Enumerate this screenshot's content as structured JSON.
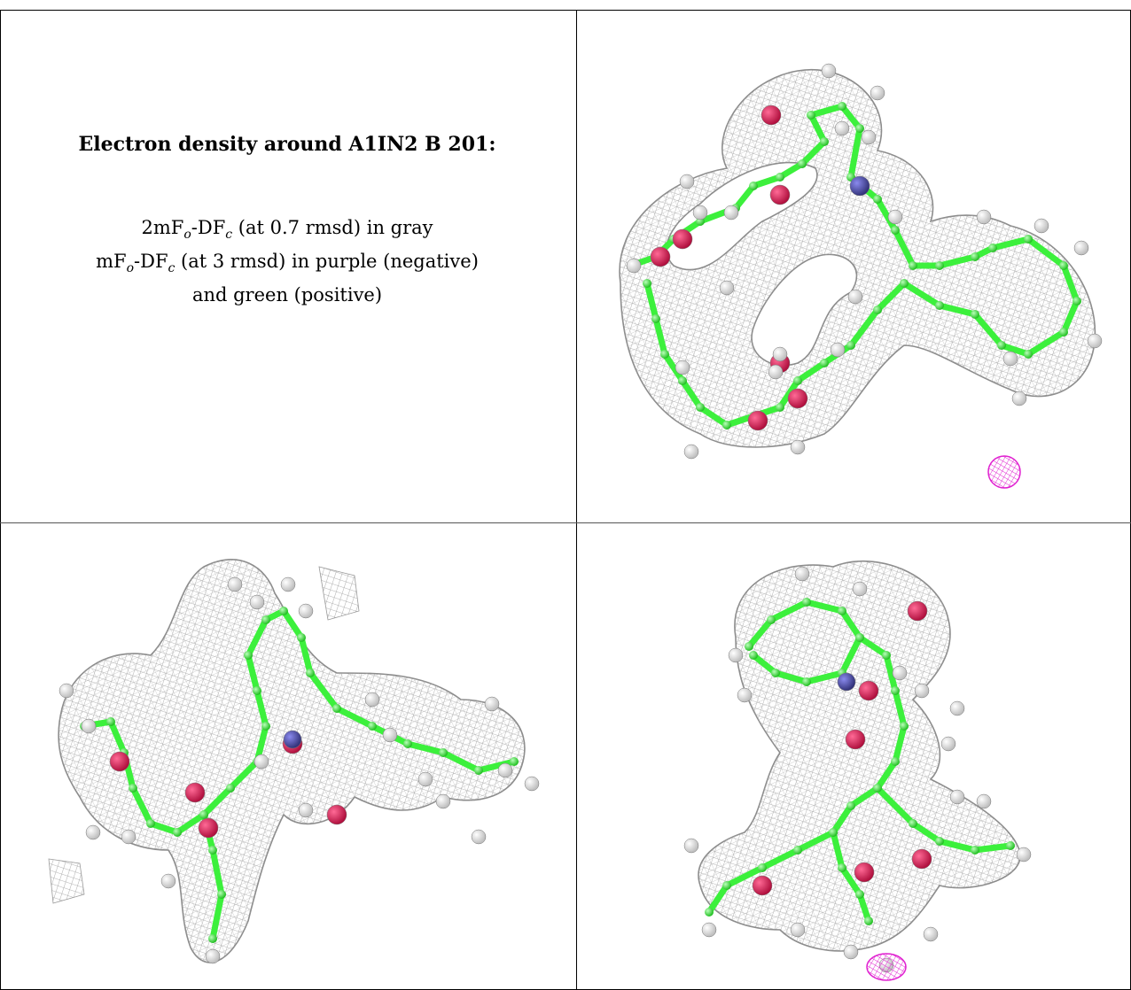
{
  "caption": {
    "title": "Electron density around A1IN2 B 201:",
    "line1": {
      "a": "2mF",
      "o": "o",
      "b": "-DF",
      "c": "c",
      "rest": " (at 0.7 rmsd) in gray"
    },
    "line2": {
      "a": "mF",
      "o": "o",
      "b": "-DF",
      "c": "c",
      "rest": " (at 3 rmsd) in purple (negative)"
    },
    "line3": "and green (positive)"
  },
  "colors": {
    "mesh": "#9a9a9a",
    "carbon": "#3cf03c",
    "oxygen": "#e01a5a",
    "nitrogen": "#4a4ab0",
    "hydrogen": "#e8e8e8",
    "negative": "#e020d0"
  },
  "panels": [
    "view-top-right",
    "view-bottom-left",
    "view-bottom-right"
  ]
}
